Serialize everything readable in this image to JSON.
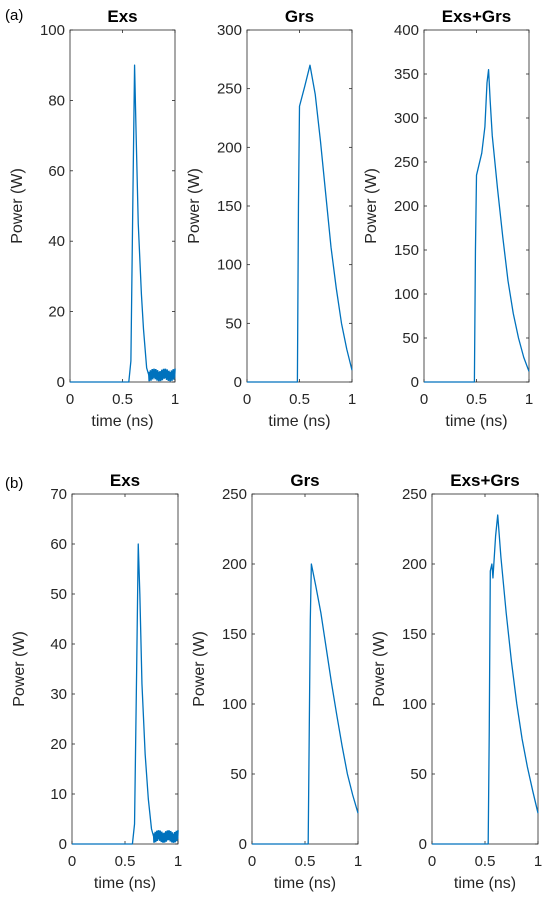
{
  "panel_labels": [
    "(a)",
    "(b)"
  ],
  "chart_data": [
    {
      "type": "line",
      "panel": "(a)",
      "title": "Exs",
      "xlabel": "time (ns)",
      "ylabel": "Power (W)",
      "xlim": [
        0,
        1
      ],
      "ylim": [
        0,
        100
      ],
      "xticks": [
        0,
        0.5,
        1
      ],
      "yticks": [
        0,
        20,
        40,
        60,
        80,
        100
      ],
      "color": "#0072BD",
      "noise_tail": true,
      "x": [
        0,
        0.56,
        0.58,
        0.6,
        0.615,
        0.63,
        0.65,
        0.68,
        0.7,
        0.73,
        0.75,
        1.0
      ],
      "y": [
        0,
        0,
        6,
        55,
        90,
        70,
        45,
        25,
        15,
        4,
        2,
        2
      ]
    },
    {
      "type": "line",
      "panel": "(a)",
      "title": "Grs",
      "xlabel": "time (ns)",
      "ylabel": "Power (W)",
      "xlim": [
        0,
        1
      ],
      "ylim": [
        0,
        300
      ],
      "xticks": [
        0,
        0.5,
        1
      ],
      "yticks": [
        0,
        50,
        100,
        150,
        200,
        250,
        300
      ],
      "color": "#0072BD",
      "x": [
        0,
        0.48,
        0.49,
        0.5,
        0.55,
        0.6,
        0.65,
        0.7,
        0.75,
        0.8,
        0.85,
        0.9,
        0.95,
        1.0
      ],
      "y": [
        0,
        0,
        150,
        235,
        252,
        270,
        245,
        205,
        160,
        115,
        80,
        50,
        28,
        10
      ]
    },
    {
      "type": "line",
      "panel": "(a)",
      "title": "Exs+Grs",
      "xlabel": "time (ns)",
      "ylabel": "Power (W)",
      "xlim": [
        0,
        1
      ],
      "ylim": [
        0,
        400
      ],
      "xticks": [
        0,
        0.5,
        1
      ],
      "yticks": [
        0,
        50,
        100,
        150,
        200,
        250,
        300,
        350,
        400
      ],
      "color": "#0072BD",
      "x": [
        0,
        0.48,
        0.49,
        0.5,
        0.55,
        0.58,
        0.6,
        0.615,
        0.63,
        0.65,
        0.7,
        0.75,
        0.8,
        0.85,
        0.9,
        0.95,
        1.0
      ],
      "y": [
        0,
        0,
        150,
        235,
        260,
        290,
        340,
        355,
        320,
        280,
        220,
        165,
        115,
        78,
        50,
        28,
        12
      ]
    },
    {
      "type": "line",
      "panel": "(b)",
      "title": "Exs",
      "xlabel": "time (ns)",
      "ylabel": "Power (W)",
      "xlim": [
        0,
        1
      ],
      "ylim": [
        0,
        70
      ],
      "xticks": [
        0,
        0.5,
        1
      ],
      "yticks": [
        0,
        10,
        20,
        30,
        40,
        50,
        60,
        70
      ],
      "color": "#0072BD",
      "noise_tail": true,
      "x": [
        0,
        0.57,
        0.59,
        0.61,
        0.625,
        0.64,
        0.66,
        0.69,
        0.72,
        0.75,
        0.77,
        1.0
      ],
      "y": [
        0,
        0,
        4,
        35,
        60,
        50,
        32,
        18,
        9,
        3,
        1.5,
        1.5
      ]
    },
    {
      "type": "line",
      "panel": "(b)",
      "title": "Grs",
      "xlabel": "time (ns)",
      "ylabel": "Power (W)",
      "xlim": [
        0,
        1
      ],
      "ylim": [
        0,
        250
      ],
      "xticks": [
        0,
        0.5,
        1
      ],
      "yticks": [
        0,
        50,
        100,
        150,
        200,
        250
      ],
      "color": "#0072BD",
      "x": [
        0,
        0.53,
        0.54,
        0.55,
        0.56,
        0.6,
        0.65,
        0.7,
        0.75,
        0.8,
        0.85,
        0.9,
        0.95,
        1.0
      ],
      "y": [
        0,
        0,
        80,
        160,
        200,
        185,
        165,
        140,
        115,
        92,
        70,
        50,
        35,
        22
      ]
    },
    {
      "type": "line",
      "panel": "(b)",
      "title": "Exs+Grs",
      "xlabel": "time (ns)",
      "ylabel": "Power (W)",
      "xlim": [
        0,
        1
      ],
      "ylim": [
        0,
        250
      ],
      "xticks": [
        0,
        0.5,
        1
      ],
      "yticks": [
        0,
        50,
        100,
        150,
        200,
        250
      ],
      "color": "#0072BD",
      "x": [
        0,
        0.53,
        0.54,
        0.55,
        0.565,
        0.575,
        0.6,
        0.62,
        0.65,
        0.7,
        0.75,
        0.8,
        0.85,
        0.9,
        0.95,
        1.0
      ],
      "y": [
        0,
        0,
        80,
        195,
        200,
        190,
        220,
        235,
        205,
        165,
        130,
        100,
        75,
        55,
        38,
        22
      ]
    }
  ]
}
